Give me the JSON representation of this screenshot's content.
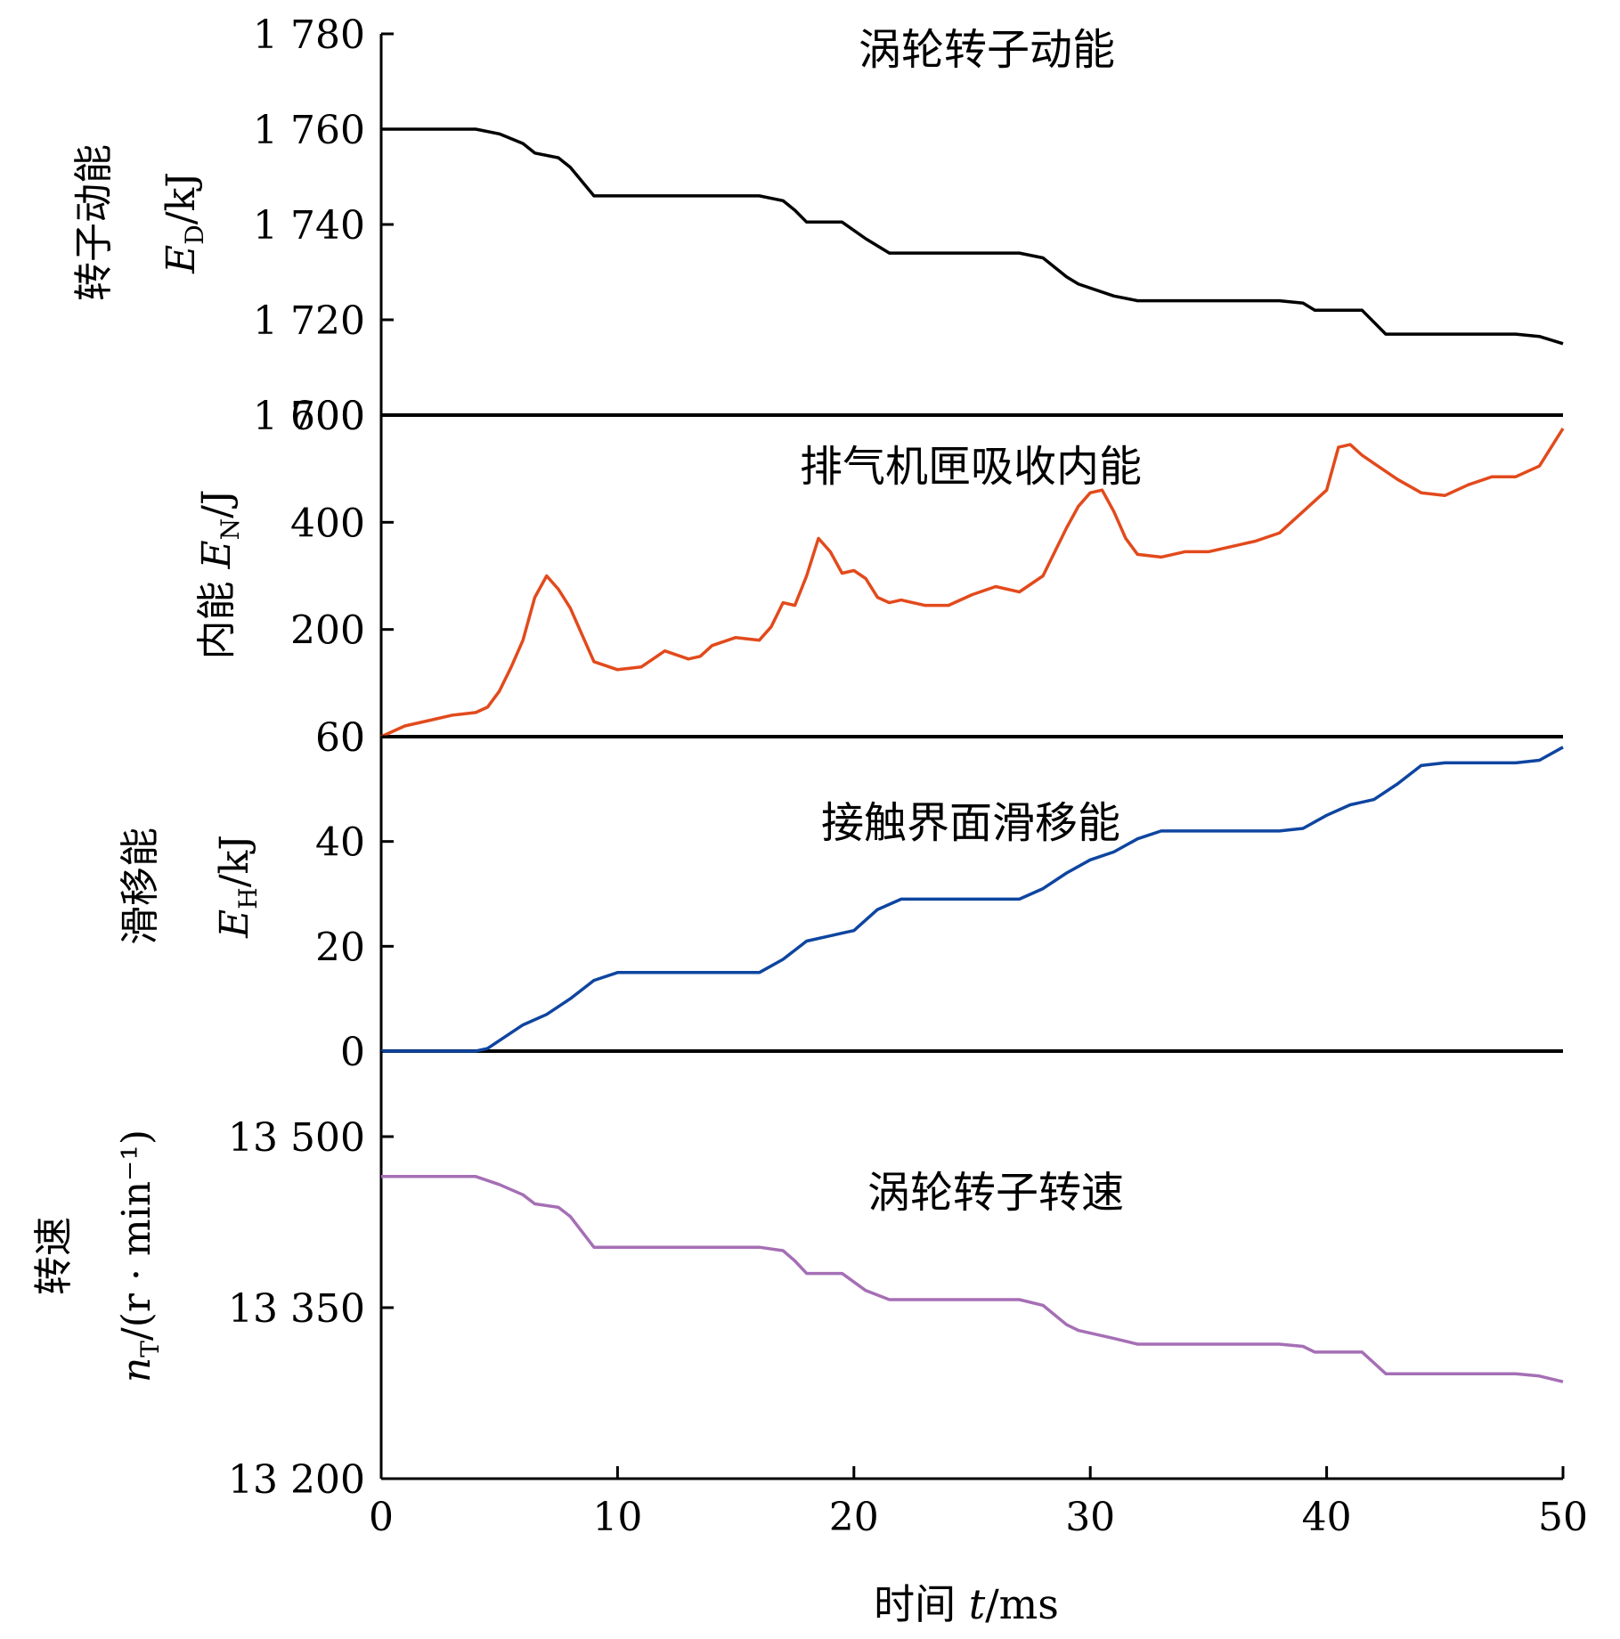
{
  "x_axis": {
    "label_prefix": "时间 ",
    "label_var": "t",
    "label_unit": "/ms",
    "range": [
      0,
      50
    ],
    "ticks": [
      "0",
      "10",
      "20",
      "30",
      "40",
      "50"
    ]
  },
  "chart_data": [
    {
      "type": "line",
      "title": "涡轮转子动能",
      "ylabel_cn": "转子动能",
      "ylabel_sym": "E",
      "ylabel_sub": "D",
      "ylabel_unit": "/kJ",
      "ylim": [
        1700,
        1780
      ],
      "yticks": [
        "1 700",
        "1 720",
        "1 740",
        "1 760",
        "1 780"
      ],
      "color": "#000000",
      "series": [
        {
          "x": [
            0,
            4,
            5,
            6,
            6.5,
            7.5,
            8,
            9,
            16,
            17,
            17.5,
            18,
            19.5,
            20.5,
            21.5,
            25,
            27,
            28,
            29,
            29.5,
            31,
            32,
            38,
            39,
            39.5,
            41.5,
            42.5,
            48,
            49,
            50
          ],
          "y": [
            1760,
            1760,
            1759,
            1757,
            1755,
            1754,
            1752,
            1746,
            1746,
            1745,
            1743,
            1740.5,
            1740.5,
            1737,
            1734,
            1734,
            1734,
            1733,
            1729,
            1727.5,
            1725,
            1724,
            1724,
            1723.5,
            1722,
            1722,
            1717,
            1717,
            1716.5,
            1715
          ]
        }
      ]
    },
    {
      "type": "line",
      "title": "排气机匣吸收内能",
      "ylabel_cn": "内能 ",
      "ylabel_sym": "E",
      "ylabel_sub": "N",
      "ylabel_unit": "/J",
      "ylim": [
        0,
        600
      ],
      "yticks": [
        "0",
        "200",
        "400",
        "600"
      ],
      "color": "#e24a1c",
      "series": [
        {
          "x": [
            0,
            1,
            2,
            3,
            4,
            4.5,
            5,
            5.5,
            6,
            6.5,
            7,
            7.5,
            8,
            8.5,
            9,
            10,
            11,
            11.5,
            12,
            13,
            13.5,
            14,
            15,
            16,
            16.5,
            17,
            17.5,
            18,
            18.5,
            19,
            19.5,
            20,
            20.5,
            21,
            21.5,
            22,
            23,
            24,
            25,
            26,
            27,
            28,
            28.5,
            29,
            29.5,
            30,
            30.5,
            31,
            31.5,
            32,
            33,
            34,
            35,
            36,
            37,
            38,
            39,
            40,
            40.5,
            41,
            41.5,
            42,
            43,
            44,
            45,
            46,
            47,
            48,
            49,
            50
          ],
          "y": [
            0,
            20,
            30,
            40,
            45,
            55,
            85,
            130,
            180,
            260,
            300,
            275,
            240,
            190,
            140,
            125,
            130,
            145,
            160,
            145,
            150,
            170,
            185,
            180,
            205,
            250,
            245,
            300,
            370,
            345,
            305,
            310,
            295,
            260,
            250,
            255,
            245,
            245,
            265,
            280,
            270,
            300,
            345,
            390,
            430,
            455,
            460,
            420,
            370,
            340,
            335,
            345,
            345,
            355,
            365,
            380,
            420,
            460,
            540,
            545,
            525,
            510,
            480,
            455,
            450,
            470,
            485,
            485,
            505,
            575
          ]
        }
      ]
    },
    {
      "type": "line",
      "title": "接触界面滑移能",
      "ylabel_cn": "滑移能",
      "ylabel_sym": "E",
      "ylabel_sub": "H",
      "ylabel_unit": "/kJ",
      "ylim": [
        0,
        60
      ],
      "yticks": [
        "0",
        "20",
        "40",
        "60"
      ],
      "color": "#0e45a0",
      "series": [
        {
          "x": [
            0,
            4,
            4.5,
            5,
            6,
            7,
            8,
            9,
            10,
            15,
            16,
            17,
            18,
            19,
            19.5,
            20,
            21,
            22,
            27,
            28,
            29,
            30,
            31,
            32,
            33,
            38,
            39,
            40,
            41,
            42,
            43,
            44,
            45,
            48,
            49,
            50
          ],
          "y": [
            0,
            0,
            0.5,
            2,
            5,
            7,
            10,
            13.5,
            15,
            15,
            15,
            17.5,
            21,
            22,
            22.5,
            23,
            27,
            29,
            29,
            31,
            34,
            36.5,
            38,
            40.5,
            42,
            42,
            42.5,
            45,
            47,
            48,
            51,
            54.5,
            55,
            55,
            55.5,
            58
          ]
        }
      ]
    },
    {
      "type": "line",
      "title": "涡轮转子转速",
      "ylabel_cn": "转速",
      "ylabel_sym": "n",
      "ylabel_sub": "T",
      "ylabel_unit": "/(r · min⁻¹)",
      "ylim": [
        13200,
        13575
      ],
      "yticks": [
        "13 200",
        "13 350",
        "13 500"
      ],
      "color": "#a56fb5",
      "series": [
        {
          "x": [
            0,
            4,
            5,
            6,
            6.5,
            7.5,
            8,
            9,
            16,
            17,
            17.5,
            18,
            19.5,
            20.5,
            21.5,
            25,
            27,
            28,
            29,
            29.5,
            31,
            32,
            38,
            39,
            39.5,
            41.5,
            42.5,
            48,
            49,
            50
          ],
          "y": [
            13465,
            13465,
            13458,
            13449,
            13441,
            13438,
            13430,
            13403,
            13403,
            13400,
            13391,
            13380,
            13380,
            13365,
            13357,
            13357,
            13357,
            13352,
            13335,
            13330,
            13323,
            13318,
            13318,
            13316,
            13311,
            13311,
            13292,
            13292,
            13290,
            13285
          ]
        }
      ]
    }
  ]
}
